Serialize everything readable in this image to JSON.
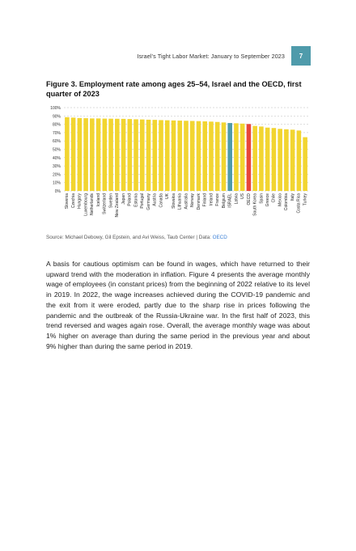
{
  "header": {
    "running_title": "Israel’s Tight Labor Market: January to September 2023",
    "page_number": "7",
    "badge_color": "#4f9bab"
  },
  "figure": {
    "title": "Figure 3. Employment rate among ages 25–54, Israel and the OECD, first quarter of 2023",
    "source_prefix": "Source: Michael Debowy, Gil Epstein, and Avi Weiss, Taub Center | Data: ",
    "source_link": "OECD"
  },
  "chart_data": {
    "type": "bar",
    "title": "",
    "xlabel": "",
    "ylabel": "",
    "ylim": [
      0,
      100
    ],
    "yticks": [
      "0%",
      "10%",
      "20%",
      "30%",
      "40%",
      "50%",
      "60%",
      "70%",
      "80%",
      "90%",
      "100%"
    ],
    "grid": true,
    "legend": "none",
    "colors": {
      "default": "#f2d530",
      "israel": "#4f9bab",
      "oecd": "#e8473a"
    },
    "categories": [
      "Slovenia",
      "Czechia",
      "Hungary",
      "Luxembourg",
      "Netherlands",
      "Iceland",
      "Switzerland",
      "Sweden",
      "New Zealand",
      "Japan",
      "Poland",
      "Estonia",
      "Portugal",
      "Germany",
      "Austria",
      "Canada",
      "UK",
      "Slovakia",
      "Lithuania",
      "Australia",
      "Norway",
      "Denmark",
      "Finland",
      "Ireland",
      "France",
      "Belgium",
      "ISRAEL",
      "Latvia",
      "US",
      "OECD",
      "South Korea",
      "Spain",
      "Greece",
      "Chile",
      "Mexico",
      "Colombia",
      "Italy",
      "Costa Rica",
      "Turkey"
    ],
    "values": [
      88.5,
      88,
      87.5,
      87.3,
      87,
      87,
      86.8,
      86.7,
      86.6,
      86.5,
      86.3,
      86,
      85.8,
      85.5,
      85.3,
      85,
      84.8,
      84.6,
      84.4,
      84.2,
      84,
      83.8,
      83.5,
      83.2,
      82.8,
      82.2,
      81.5,
      81.2,
      80.8,
      80.3,
      78,
      77.3,
      76,
      75.5,
      74.5,
      74,
      73.5,
      72.5,
      64.5
    ],
    "highlight": {
      "ISRAEL": "israel",
      "OECD": "oecd"
    }
  },
  "body": {
    "paragraph": "A basis for cautious optimism can be found in wages, which have returned to their upward trend with the moderation in inflation. Figure 4 presents the average monthly wage of employees (in constant prices) from the beginning of 2022 relative to its level in 2019. In 2022, the wage increases achieved during the COVID-19 pandemic and the exit from it were eroded, partly due to the sharp rise in prices following the pandemic and the outbreak of the Russia-Ukraine war. In the first half of 2023, this trend reversed and wages again rose. Overall, the average monthly wage was about 1% higher on average than during the same period in the previous year and about 9% higher than during the same period in 2019."
  }
}
